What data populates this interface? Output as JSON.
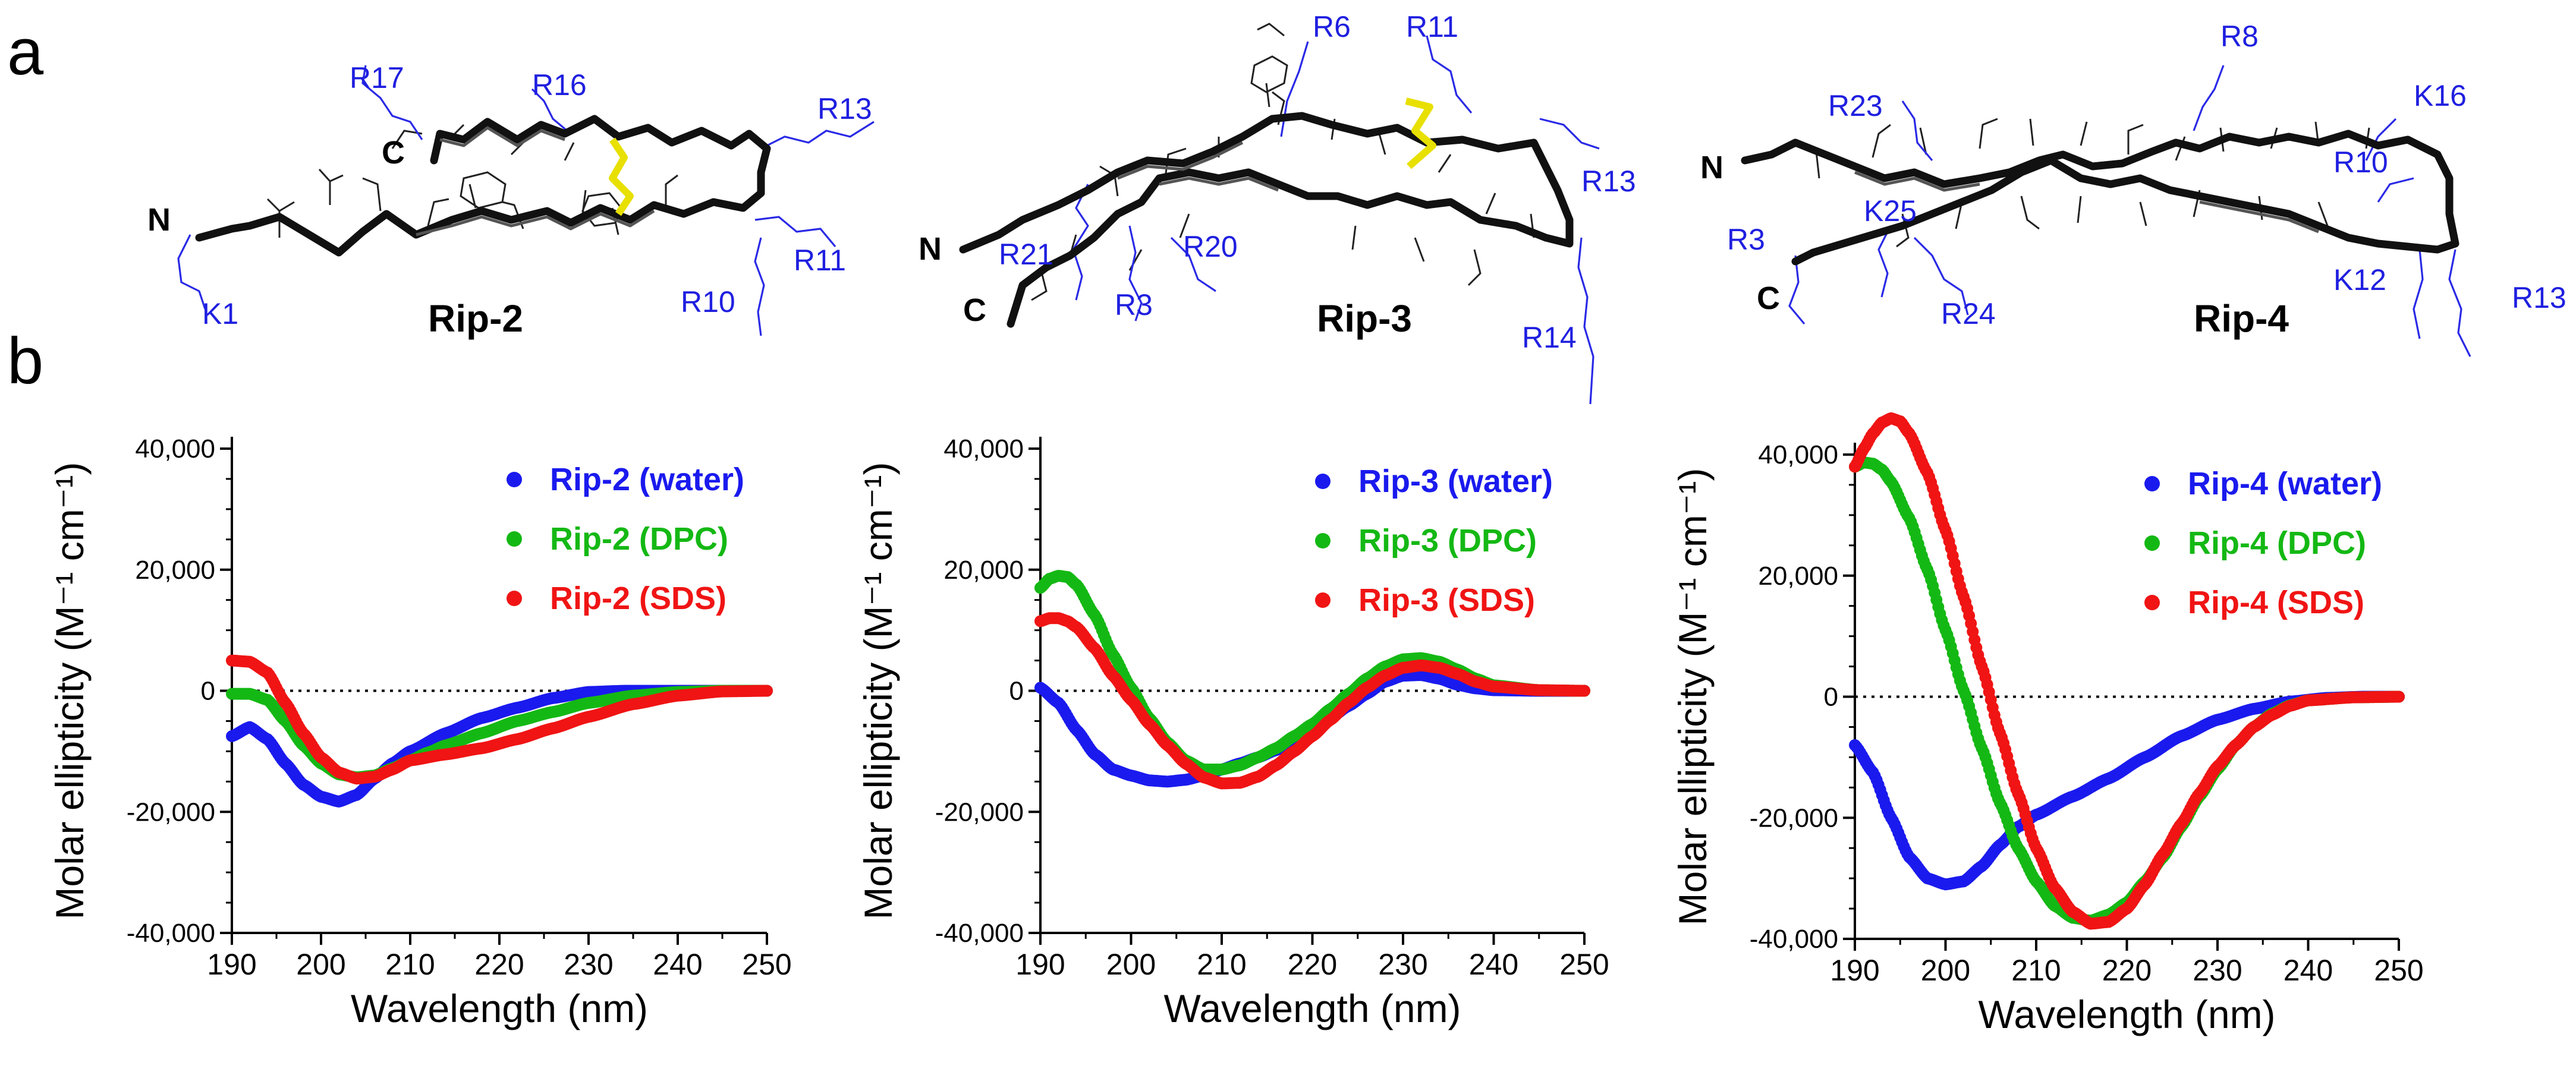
{
  "panel_labels": {
    "a": "a",
    "b": "b"
  },
  "structures": [
    {
      "name": "Rip-2",
      "n_term": "N",
      "c_term": "C",
      "residues": [
        "R17",
        "R16",
        "R13",
        "R11",
        "R10",
        "K1"
      ]
    },
    {
      "name": "Rip-3",
      "n_term": "N",
      "c_term": "C",
      "residues": [
        "R6",
        "R11",
        "R13",
        "R21",
        "R20",
        "R3",
        "R14"
      ]
    },
    {
      "name": "Rip-4",
      "n_term": "N",
      "c_term": "C",
      "residues": [
        "R8",
        "R23",
        "K16",
        "R10",
        "R3",
        "K25",
        "K12",
        "R24",
        "R13"
      ]
    }
  ],
  "colors": {
    "water": "#1a1aee",
    "dpc": "#14b814",
    "sds": "#f01414",
    "residue_label": "#1f1fe0",
    "disulfide": "#e8e000"
  },
  "chart_data": [
    {
      "type": "scatter",
      "title": "",
      "xlabel": "Wavelength (nm)",
      "ylabel": "Molar ellipticity (M⁻¹ cm⁻¹)",
      "xlim": [
        190,
        250
      ],
      "ylim": [
        -40000,
        40000
      ],
      "x_ticks": [
        190,
        200,
        210,
        220,
        230,
        240,
        250
      ],
      "y_ticks": [
        40000,
        20000,
        0,
        -20000,
        -40000
      ],
      "y_tick_labels": [
        "40,000",
        "20,000",
        "0",
        "-20,000",
        "-40,000"
      ],
      "zero_line": "dotted",
      "legend_position": "top-right",
      "series": [
        {
          "name": "Rip-2 (water)",
          "color": "water",
          "x": [
            190,
            192,
            194,
            196,
            198,
            200,
            202,
            204,
            206,
            208,
            210,
            214,
            218,
            222,
            226,
            230,
            234,
            240,
            245,
            250
          ],
          "y": [
            -7500,
            -6000,
            -8000,
            -12000,
            -15500,
            -17500,
            -18300,
            -17200,
            -14500,
            -12000,
            -10000,
            -7000,
            -4500,
            -2800,
            -1200,
            -200,
            0,
            0,
            0,
            0
          ]
        },
        {
          "name": "Rip-2 (DPC)",
          "color": "dpc",
          "x": [
            190,
            192,
            194,
            196,
            198,
            200,
            202,
            204,
            206,
            208,
            210,
            212,
            214,
            218,
            222,
            226,
            230,
            235,
            240,
            245,
            250
          ],
          "y": [
            -500,
            -500,
            -1500,
            -5000,
            -9000,
            -12000,
            -13800,
            -14300,
            -14000,
            -12800,
            -11500,
            -10200,
            -9000,
            -7000,
            -5000,
            -3500,
            -2000,
            -800,
            -200,
            0,
            0
          ]
        },
        {
          "name": "Rip-2 (SDS)",
          "color": "sds",
          "x": [
            190,
            192,
            194,
            196,
            198,
            200,
            202,
            204,
            206,
            208,
            210,
            214,
            218,
            222,
            226,
            230,
            235,
            240,
            245,
            250
          ],
          "y": [
            5000,
            4800,
            3000,
            -2000,
            -7000,
            -11000,
            -13500,
            -14500,
            -14200,
            -13000,
            -11500,
            -10500,
            -9500,
            -8000,
            -6200,
            -4300,
            -2200,
            -800,
            -100,
            0
          ]
        }
      ]
    },
    {
      "type": "scatter",
      "title": "",
      "xlabel": "Wavelength (nm)",
      "ylabel": "Molar ellipticity (M⁻¹ cm⁻¹)",
      "xlim": [
        190,
        250
      ],
      "ylim": [
        -40000,
        40000
      ],
      "x_ticks": [
        190,
        200,
        210,
        220,
        230,
        240,
        250
      ],
      "y_ticks": [
        40000,
        20000,
        0,
        -20000,
        -40000
      ],
      "y_tick_labels": [
        "40,000",
        "20,000",
        "0",
        "-20,000",
        "-40,000"
      ],
      "zero_line": "dotted",
      "legend_position": "top-right",
      "series": [
        {
          "name": "Rip-3 (water)",
          "color": "water",
          "x": [
            190,
            192,
            194,
            196,
            198,
            200,
            202,
            204,
            206,
            208,
            210,
            212,
            214,
            216,
            218,
            220,
            222,
            224,
            226,
            228,
            230,
            232,
            234,
            236,
            238,
            240,
            245,
            250
          ],
          "y": [
            500,
            -2000,
            -6500,
            -10500,
            -13000,
            -14000,
            -14800,
            -15000,
            -14700,
            -14000,
            -13000,
            -12000,
            -11000,
            -9800,
            -8300,
            -6500,
            -4500,
            -2500,
            -500,
            1500,
            2500,
            2600,
            2000,
            1000,
            400,
            100,
            0,
            0
          ]
        },
        {
          "name": "Rip-3 (DPC)",
          "color": "dpc",
          "x": [
            190,
            191,
            192,
            193,
            194,
            196,
            198,
            200,
            202,
            204,
            206,
            208,
            210,
            212,
            214,
            216,
            218,
            220,
            222,
            224,
            226,
            228,
            230,
            232,
            234,
            236,
            238,
            240,
            245,
            250
          ],
          "y": [
            17000,
            18500,
            19000,
            18800,
            17500,
            12500,
            6000,
            500,
            -4500,
            -8500,
            -11500,
            -13000,
            -13000,
            -12300,
            -11000,
            -9500,
            -7500,
            -5500,
            -3000,
            -500,
            2000,
            4000,
            5200,
            5400,
            4800,
            3500,
            2000,
            900,
            100,
            0
          ]
        },
        {
          "name": "Rip-3 (SDS)",
          "color": "sds",
          "x": [
            190,
            191,
            192,
            193,
            194,
            196,
            198,
            200,
            202,
            204,
            206,
            208,
            210,
            212,
            214,
            216,
            218,
            220,
            222,
            224,
            226,
            228,
            230,
            232,
            234,
            236,
            238,
            240,
            245,
            250
          ],
          "y": [
            11500,
            12000,
            12000,
            11500,
            10500,
            7000,
            2500,
            -1500,
            -5500,
            -9000,
            -12000,
            -14300,
            -15300,
            -15200,
            -14200,
            -12300,
            -10000,
            -7500,
            -4800,
            -2000,
            500,
            2500,
            3800,
            4200,
            3800,
            2800,
            1500,
            700,
            100,
            0
          ]
        }
      ]
    },
    {
      "type": "scatter",
      "title": "",
      "xlabel": "Wavelength (nm)",
      "ylabel": "Molar ellipticity (M⁻¹ cm⁻¹)",
      "xlim": [
        190,
        250
      ],
      "ylim": [
        -40000,
        40000
      ],
      "x_ticks": [
        190,
        200,
        210,
        220,
        230,
        240,
        250
      ],
      "y_ticks": [
        40000,
        20000,
        0,
        -20000,
        -40000
      ],
      "y_tick_labels": [
        "40,000",
        "20,000",
        "0",
        "-20,000",
        "-40,000"
      ],
      "zero_line": "dotted",
      "legend_position": "top-right",
      "series": [
        {
          "name": "Rip-4 (water)",
          "color": "water",
          "x": [
            190,
            192,
            194,
            196,
            198,
            200,
            202,
            204,
            206,
            208,
            210,
            214,
            218,
            222,
            226,
            230,
            234,
            238,
            242,
            246,
            250
          ],
          "y": [
            -8000,
            -12500,
            -20000,
            -26500,
            -30000,
            -31000,
            -30500,
            -28000,
            -24500,
            -21500,
            -19500,
            -16500,
            -13500,
            -10000,
            -6500,
            -3800,
            -2000,
            -800,
            -200,
            0,
            0
          ]
        },
        {
          "name": "Rip-4 (DPC)",
          "color": "dpc",
          "x": [
            190,
            191,
            192,
            193,
            194,
            196,
            198,
            200,
            202,
            204,
            206,
            208,
            210,
            212,
            214,
            216,
            218,
            220,
            222,
            224,
            226,
            228,
            230,
            232,
            234,
            236,
            238,
            240,
            245,
            250
          ],
          "y": [
            38000,
            38700,
            38500,
            37500,
            35500,
            29500,
            21000,
            11000,
            1000,
            -8500,
            -17500,
            -25000,
            -30500,
            -34500,
            -36500,
            -37000,
            -36000,
            -34000,
            -30500,
            -26500,
            -21500,
            -16500,
            -12000,
            -8000,
            -5000,
            -2800,
            -1400,
            -600,
            -100,
            0
          ]
        },
        {
          "name": "Rip-4 (SDS)",
          "color": "sds",
          "x": [
            190,
            191,
            192,
            193,
            194,
            195,
            196,
            198,
            200,
            202,
            204,
            206,
            208,
            210,
            212,
            214,
            216,
            218,
            220,
            222,
            224,
            226,
            228,
            230,
            232,
            234,
            236,
            238,
            240,
            245,
            250
          ],
          "y": [
            38000,
            41000,
            43500,
            45300,
            46000,
            45500,
            43500,
            37000,
            27500,
            16500,
            5000,
            -6000,
            -16000,
            -25000,
            -31500,
            -35500,
            -37500,
            -37200,
            -35000,
            -31000,
            -26000,
            -21000,
            -16000,
            -11500,
            -8000,
            -5000,
            -3000,
            -1500,
            -600,
            -100,
            0
          ]
        }
      ]
    }
  ]
}
